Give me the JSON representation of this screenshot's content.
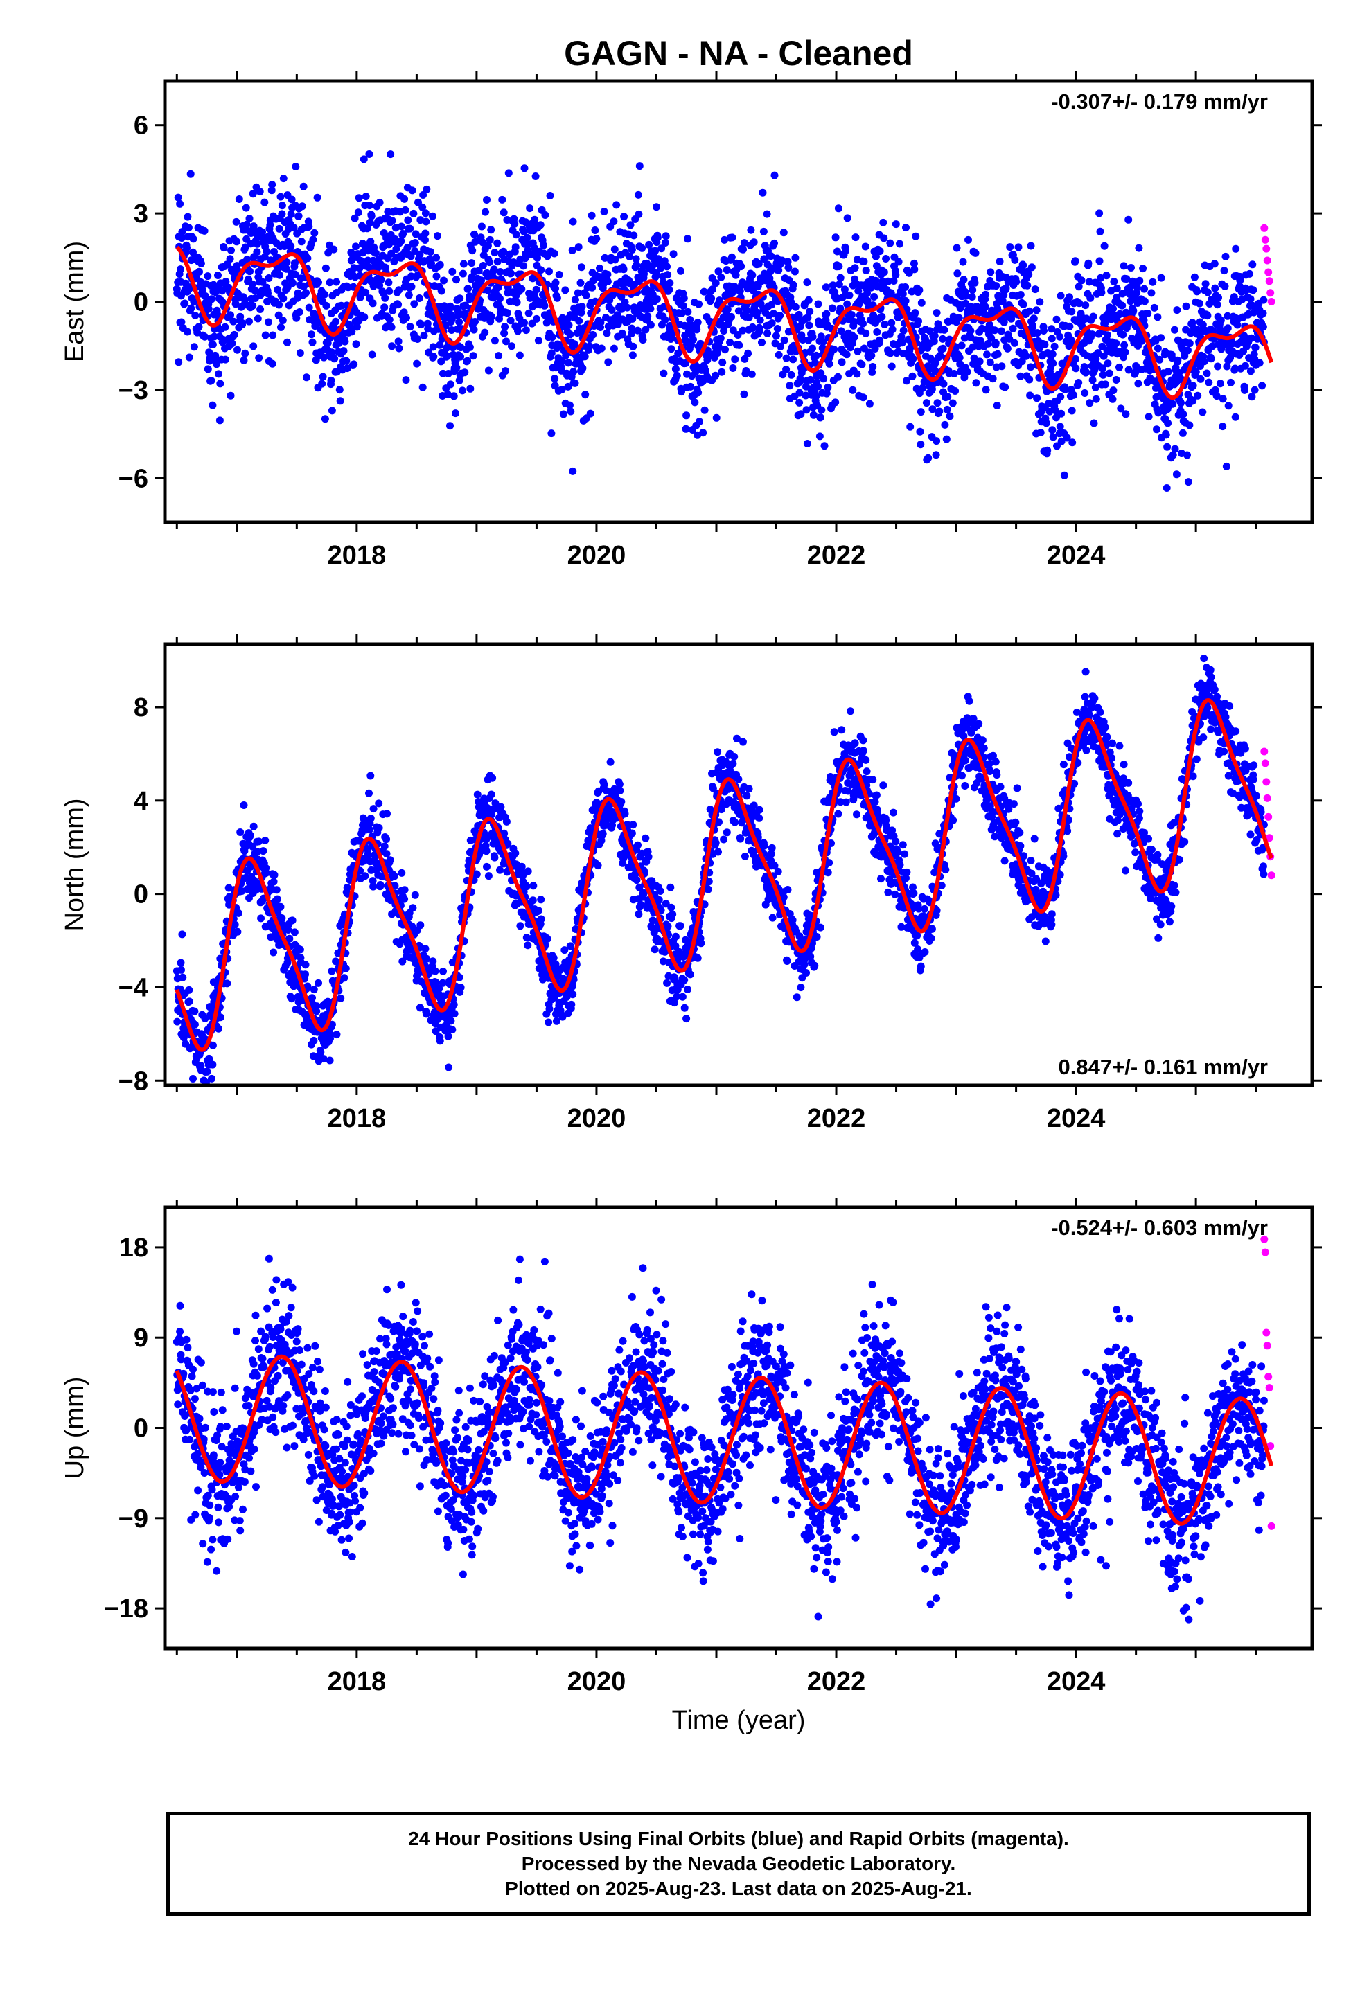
{
  "title": "GAGN  - NA - Cleaned",
  "xlabel": "Time (year)",
  "footer": {
    "line1": "24 Hour Positions Using Final Orbits (blue) and Rapid Orbits (magenta).",
    "line2": "Processed by the Nevada Geodetic Laboratory.",
    "line3": "Plotted on 2025-Aug-23. Last data on 2025-Aug-21."
  },
  "colors": {
    "final_orbits": "#0000ff",
    "rapid_orbits": "#ff00ff",
    "model_fit": "#ff0000",
    "axes": "#000000"
  },
  "chart_data": [
    {
      "type": "scatter",
      "component": "East",
      "ylabel": "East (mm)",
      "rate_label": "-0.307+/- 0.179 mm/yr",
      "rate_position": "top-right",
      "xlim": [
        2016.4,
        2025.97
      ],
      "ylim": [
        -7.5,
        7.5
      ],
      "xticks": [
        2018,
        2020,
        2022,
        2024
      ],
      "yticks": [
        -6,
        -3,
        0,
        3,
        6
      ],
      "tick_labels_x": [
        "2018",
        "2020",
        "2022",
        "2024"
      ],
      "tick_labels_y": [
        "−6",
        "−3",
        "0",
        "3",
        "6"
      ],
      "grid": false,
      "data_span": [
        2016.5,
        2025.63
      ],
      "rapid_span": [
        2025.57,
        2025.63
      ],
      "model": {
        "offset": 0.9,
        "rate": -0.307,
        "annual_sin": 1.0,
        "annual_cos": -0.5,
        "semiannual_sin": 0.25,
        "semiannual_cos": 0.45
      },
      "scatter_std": 1.3,
      "rapid_values": [
        2.5,
        2.1,
        1.8,
        1.4,
        1.0,
        0.7,
        0.3,
        0.0
      ],
      "series": [
        {
          "name": "Final Orbits",
          "color": "#0000ff"
        },
        {
          "name": "Rapid Orbits",
          "color": "#ff00ff"
        },
        {
          "name": "Model",
          "color": "#ff0000"
        }
      ]
    },
    {
      "type": "scatter",
      "component": "North",
      "ylabel": "North (mm)",
      "rate_label": "0.847+/- 0.161 mm/yr",
      "rate_position": "bottom-right",
      "xlim": [
        2016.4,
        2025.97
      ],
      "ylim": [
        -8.2,
        10.7
      ],
      "xticks": [
        2018,
        2020,
        2022,
        2024
      ],
      "yticks": [
        -8,
        -4,
        0,
        4,
        8
      ],
      "tick_labels_x": [
        "2018",
        "2020",
        "2022",
        "2024"
      ],
      "tick_labels_y": [
        "−8",
        "−4",
        "0",
        "4",
        "8"
      ],
      "grid": false,
      "data_span": [
        2016.5,
        2025.63
      ],
      "rapid_span": [
        2025.57,
        2025.63
      ],
      "model": {
        "offset": -2.9,
        "rate": 0.847,
        "annual_sin": 3.0,
        "annual_cos": 2.0,
        "semiannual_sin": 0.3,
        "semiannual_cos": 0.8
      },
      "scatter_std": 0.85,
      "rapid_values": [
        6.1,
        5.6,
        4.8,
        4.1,
        3.3,
        2.4,
        1.6,
        0.8
      ],
      "series": [
        {
          "name": "Final Orbits",
          "color": "#0000ff"
        },
        {
          "name": "Rapid Orbits",
          "color": "#ff00ff"
        },
        {
          "name": "Model",
          "color": "#ff0000"
        }
      ]
    },
    {
      "type": "scatter",
      "component": "Up",
      "ylabel": "Up (mm)",
      "rate_label": "-0.524+/- 0.603 mm/yr",
      "rate_position": "top-right",
      "xlim": [
        2016.4,
        2025.97
      ],
      "ylim": [
        -22,
        22
      ],
      "xticks": [
        2018,
        2020,
        2022,
        2024
      ],
      "yticks": [
        -18,
        -9,
        0,
        9,
        18
      ],
      "tick_labels_x": [
        "2018",
        "2020",
        "2022",
        "2024"
      ],
      "tick_labels_y": [
        "−18",
        "−9",
        "0",
        "9",
        "18"
      ],
      "grid": false,
      "data_span": [
        2016.5,
        2025.63
      ],
      "rapid_span": [
        2025.57,
        2025.63
      ],
      "model": {
        "offset": 1.2,
        "rate": -0.524,
        "annual_sin": 4.5,
        "annual_cos": -4.5,
        "semiannual_sin": 0.0,
        "semiannual_cos": 0.0
      },
      "scatter_std": 3.6,
      "rapid_values": [
        18.8,
        17.5,
        9.5,
        8.2,
        5.1,
        4.0,
        -1.8,
        -9.8
      ],
      "series": [
        {
          "name": "Final Orbits",
          "color": "#0000ff"
        },
        {
          "name": "Rapid Orbits",
          "color": "#ff00ff"
        },
        {
          "name": "Model",
          "color": "#ff0000"
        }
      ]
    }
  ]
}
